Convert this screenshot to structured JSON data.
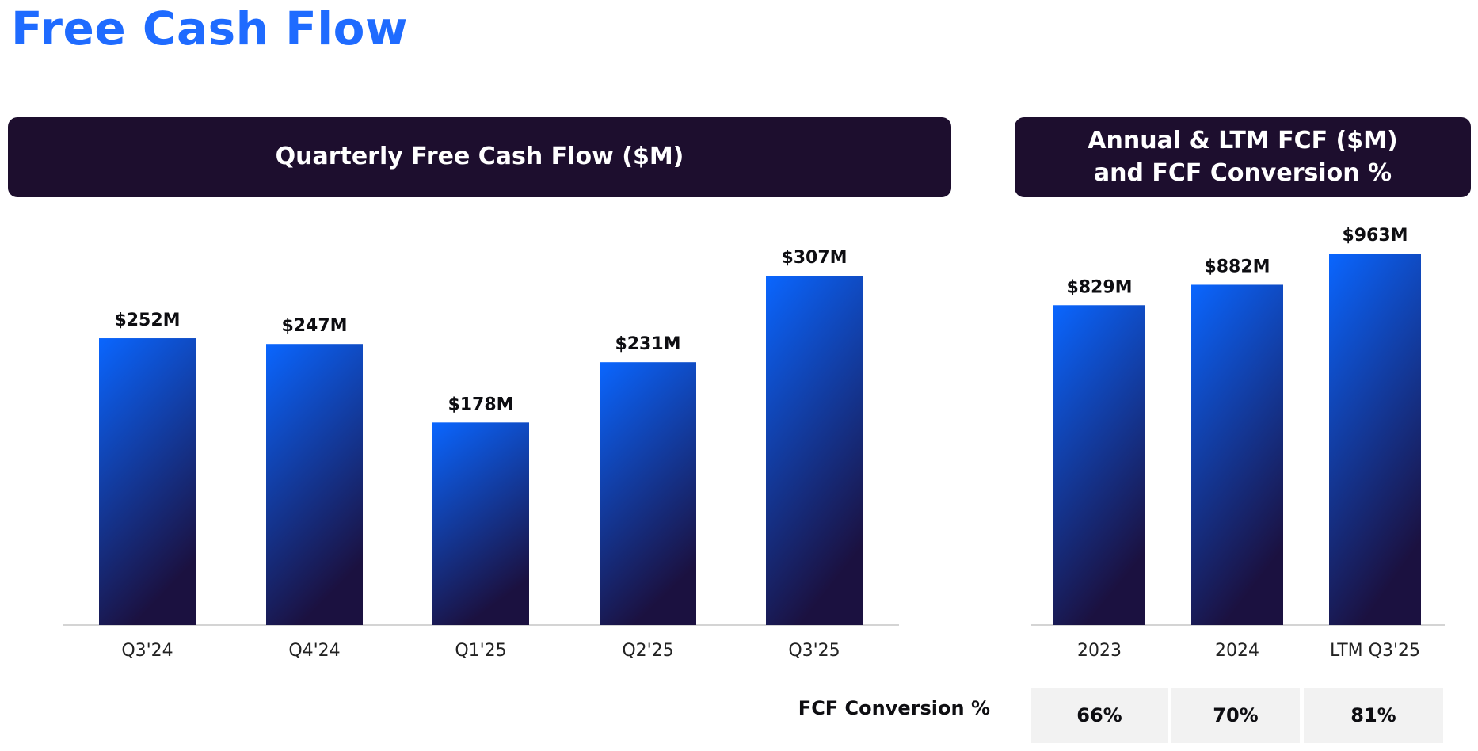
{
  "page": {
    "title": "Free Cash Flow"
  },
  "panels": {
    "quarterly_title": "Quarterly Free Cash Flow ($M)",
    "annual_title": "Annual & LTM FCF ($M)\nand FCF Conversion %"
  },
  "conversion": {
    "label": "FCF Conversion %",
    "values": [
      "66%",
      "70%",
      "81%"
    ]
  },
  "colors": {
    "accent": "#1f6bff",
    "banner": "#1d0e2e",
    "bar_top": "#0a66ff",
    "bar_bottom": "#1b1140"
  },
  "chart_data": [
    {
      "type": "bar",
      "title": "Quarterly Free Cash Flow ($M)",
      "categories": [
        "Q3'24",
        "Q4'24",
        "Q1'25",
        "Q2'25",
        "Q3'25"
      ],
      "values": [
        252,
        247,
        178,
        231,
        307
      ],
      "value_labels": [
        "$252M",
        "$247M",
        "$178M",
        "$231M",
        "$307M"
      ],
      "ylim": [
        0,
        330
      ],
      "xlabel": "",
      "ylabel": ""
    },
    {
      "type": "bar",
      "title": "Annual & LTM FCF ($M) and FCF Conversion %",
      "categories": [
        "2023",
        "2024",
        "LTM Q3'25"
      ],
      "values": [
        829,
        882,
        963
      ],
      "value_labels": [
        "$829M",
        "$882M",
        "$963M"
      ],
      "ylim": [
        0,
        1000
      ],
      "xlabel": "",
      "ylabel": ""
    }
  ]
}
